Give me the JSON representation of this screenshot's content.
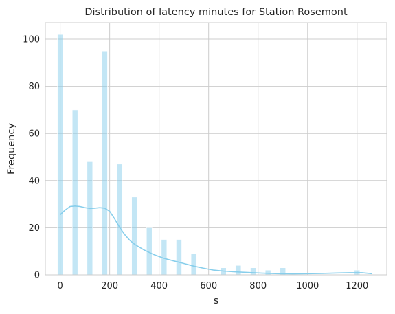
{
  "chart_data": {
    "type": "histogram",
    "title": "Distribution of latency minutes for Station Rosemont",
    "xlabel": "s",
    "ylabel": "Frequency",
    "xlim": [
      -60,
      1320
    ],
    "ylim": [
      0,
      107
    ],
    "x_ticks": [
      0,
      200,
      400,
      600,
      800,
      1000,
      1200
    ],
    "y_ticks": [
      0,
      20,
      40,
      60,
      80,
      100
    ],
    "grid": true,
    "bar_color": "#87ceeb",
    "line_color": "#87ceeb",
    "bars": [
      {
        "x": 0,
        "y": 102
      },
      {
        "x": 60,
        "y": 70
      },
      {
        "x": 120,
        "y": 48
      },
      {
        "x": 180,
        "y": 95
      },
      {
        "x": 240,
        "y": 47
      },
      {
        "x": 300,
        "y": 33
      },
      {
        "x": 360,
        "y": 20
      },
      {
        "x": 420,
        "y": 15
      },
      {
        "x": 480,
        "y": 15
      },
      {
        "x": 540,
        "y": 9
      },
      {
        "x": 660,
        "y": 3
      },
      {
        "x": 720,
        "y": 4
      },
      {
        "x": 780,
        "y": 3
      },
      {
        "x": 840,
        "y": 2
      },
      {
        "x": 900,
        "y": 3
      },
      {
        "x": 1200,
        "y": 2
      }
    ],
    "kde": [
      [
        0,
        25.5
      ],
      [
        20,
        27.5
      ],
      [
        40,
        29
      ],
      [
        60,
        29.2
      ],
      [
        80,
        29
      ],
      [
        100,
        28.5
      ],
      [
        120,
        28.2
      ],
      [
        140,
        28.3
      ],
      [
        160,
        28.5
      ],
      [
        180,
        28.3
      ],
      [
        200,
        27
      ],
      [
        220,
        23.8
      ],
      [
        240,
        20.2
      ],
      [
        260,
        17.2
      ],
      [
        280,
        14.8
      ],
      [
        300,
        13
      ],
      [
        340,
        10.5
      ],
      [
        380,
        8.5
      ],
      [
        420,
        7
      ],
      [
        460,
        5.9
      ],
      [
        500,
        4.8
      ],
      [
        540,
        3.7
      ],
      [
        580,
        2.8
      ],
      [
        620,
        2.0
      ],
      [
        660,
        1.6
      ],
      [
        700,
        1.3
      ],
      [
        760,
        1.0
      ],
      [
        820,
        0.7
      ],
      [
        880,
        0.5
      ],
      [
        940,
        0.4
      ],
      [
        1000,
        0.5
      ],
      [
        1060,
        0.6
      ],
      [
        1120,
        0.8
      ],
      [
        1180,
        0.9
      ],
      [
        1220,
        0.9
      ],
      [
        1260,
        0.5
      ]
    ]
  }
}
